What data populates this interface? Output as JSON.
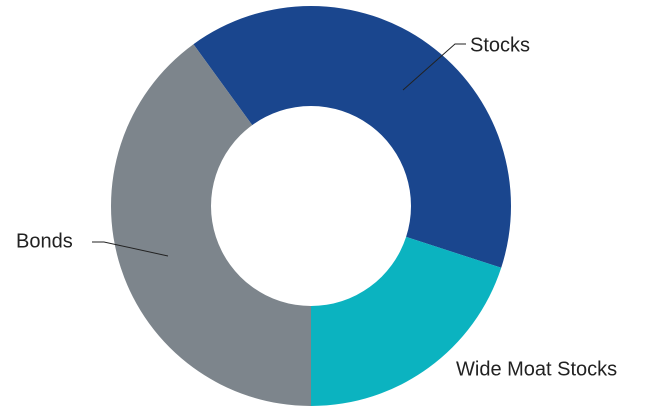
{
  "chart_data": {
    "type": "donut",
    "categories": [
      "Stocks",
      "Wide Moat Stocks",
      "Bonds"
    ],
    "values": [
      40,
      20,
      40
    ],
    "colors": [
      "#1a468e",
      "#0bb3c0",
      "#7d858c"
    ]
  }
}
